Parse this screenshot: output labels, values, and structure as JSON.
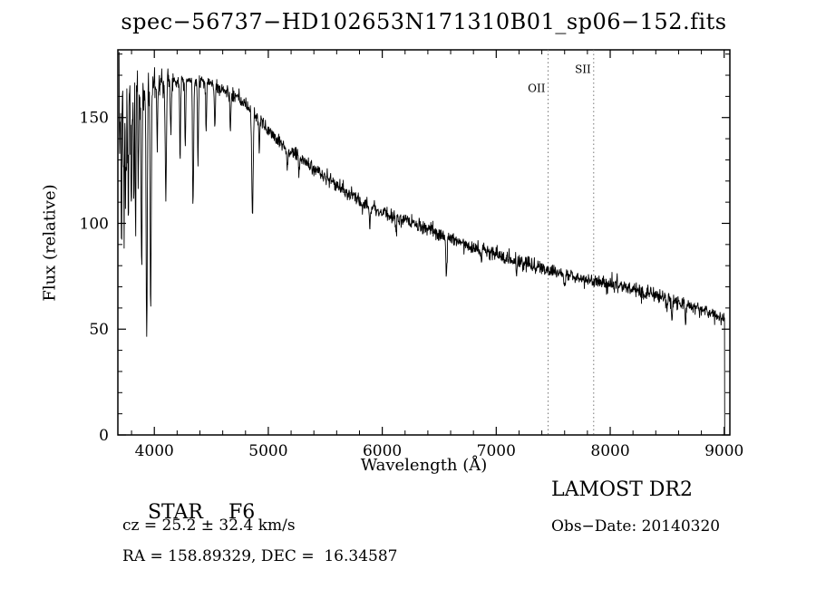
{
  "chart_data": {
    "type": "line",
    "title": "spec−56737−HD102653N171310B01_sp06−152.fits",
    "xlabel": "Wavelength (Å)",
    "ylabel": "Flux (relative)",
    "xlim": [
      3680,
      9050
    ],
    "ylim": [
      0,
      182
    ],
    "xticks": [
      4000,
      5000,
      6000,
      7000,
      8000,
      9000
    ],
    "yticks": [
      0,
      50,
      100,
      150
    ],
    "grid": false,
    "legend": "none",
    "line_color": "#000000",
    "marker_line_color": "#777777",
    "wl_start": 3690,
    "wl_step": 3,
    "cutoff_wavelength": 9005,
    "marker_lines": [
      {
        "label": "OII",
        "wavelength": 7455,
        "label_flux": 162
      },
      {
        "label": "SII",
        "wavelength": 7855,
        "label_flux": 171
      }
    ],
    "continuum_points": [
      [
        3690,
        146
      ],
      [
        3740,
        152
      ],
      [
        3790,
        158
      ],
      [
        3840,
        161
      ],
      [
        3890,
        163
      ],
      [
        3940,
        165
      ],
      [
        4000,
        166
      ],
      [
        4100,
        167
      ],
      [
        4200,
        168
      ],
      [
        4300,
        168
      ],
      [
        4400,
        168
      ],
      [
        4500,
        166
      ],
      [
        4600,
        163
      ],
      [
        4700,
        160
      ],
      [
        4800,
        156
      ],
      [
        4900,
        150
      ],
      [
        5000,
        144
      ],
      [
        5100,
        139
      ],
      [
        5200,
        134
      ],
      [
        5300,
        130
      ],
      [
        5400,
        126
      ],
      [
        5500,
        122
      ],
      [
        5600,
        118
      ],
      [
        5700,
        114
      ],
      [
        5800,
        111
      ],
      [
        5900,
        108
      ],
      [
        6000,
        105
      ],
      [
        6100,
        103
      ],
      [
        6200,
        101
      ],
      [
        6300,
        99
      ],
      [
        6400,
        97
      ],
      [
        6500,
        95
      ],
      [
        6600,
        93
      ],
      [
        6700,
        91
      ],
      [
        6800,
        89
      ],
      [
        6900,
        87
      ],
      [
        7000,
        85
      ],
      [
        7100,
        83.5
      ],
      [
        7200,
        82
      ],
      [
        7300,
        80.5
      ],
      [
        7400,
        79
      ],
      [
        7500,
        77.5
      ],
      [
        7600,
        76
      ],
      [
        7700,
        74.5
      ],
      [
        7800,
        73.5
      ],
      [
        7900,
        72.5
      ],
      [
        8000,
        71.5
      ],
      [
        8100,
        70
      ],
      [
        8200,
        68.5
      ],
      [
        8300,
        67
      ],
      [
        8400,
        66
      ],
      [
        8500,
        65
      ],
      [
        8600,
        63
      ],
      [
        8700,
        61
      ],
      [
        8800,
        59.5
      ],
      [
        8900,
        57.5
      ],
      [
        9000,
        55
      ],
      [
        9005,
        54
      ]
    ],
    "absorption_lines": [
      [
        3712,
        40,
        4
      ],
      [
        3734,
        55,
        4
      ],
      [
        3750,
        42,
        4
      ],
      [
        3771,
        50,
        4
      ],
      [
        3798,
        58,
        4
      ],
      [
        3820,
        42,
        4
      ],
      [
        3835,
        68,
        4
      ],
      [
        3860,
        38,
        4
      ],
      [
        3889,
        80,
        5
      ],
      [
        3933,
        120,
        5
      ],
      [
        3968,
        105,
        5
      ],
      [
        4026,
        28,
        4
      ],
      [
        4101,
        55,
        5
      ],
      [
        4144,
        28,
        4
      ],
      [
        4226,
        38,
        4
      ],
      [
        4271,
        30,
        4
      ],
      [
        4340,
        62,
        5
      ],
      [
        4383,
        42,
        4
      ],
      [
        4455,
        22,
        4
      ],
      [
        4531,
        22,
        4
      ],
      [
        4668,
        18,
        4
      ],
      [
        4861,
        48,
        6
      ],
      [
        4920,
        14,
        4
      ],
      [
        5167,
        12,
        5
      ],
      [
        5270,
        9,
        4
      ],
      [
        5890,
        11,
        4
      ],
      [
        6122,
        7,
        4
      ],
      [
        6563,
        18,
        6
      ],
      [
        6870,
        7,
        5
      ],
      [
        7180,
        5,
        6
      ],
      [
        7600,
        5,
        7
      ],
      [
        8498,
        7,
        4
      ],
      [
        8542,
        11,
        4
      ],
      [
        8662,
        11,
        4
      ]
    ],
    "noise": {
      "seed": 7,
      "blue_sigma": 15,
      "red_sigma": 1.7,
      "decay": 260
    }
  },
  "annotations": {
    "object_type": "STAR",
    "subclass": "F6",
    "survey": "LAMOST DR2",
    "cz": "cz = 25.2 ± 32.4 km/s",
    "obs_date": "Obs−Date: 20140320",
    "ra_dec": "RA = 158.89329, DEC =  16.34587"
  }
}
